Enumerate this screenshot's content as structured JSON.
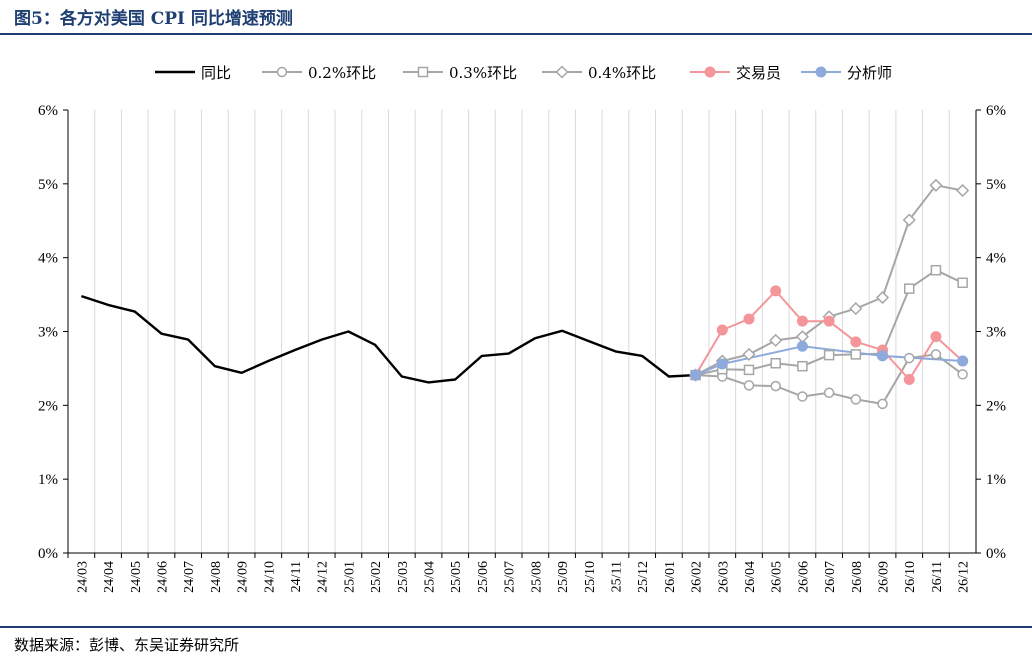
{
  "header": {
    "title": "图5：各方对美国 CPI 同比增速预测"
  },
  "footer": {
    "source": "数据来源：彭博、东吴证券研究所"
  },
  "chart_data": {
    "type": "line",
    "x": [
      "24/03",
      "24/04",
      "24/05",
      "24/06",
      "24/07",
      "24/08",
      "24/09",
      "24/10",
      "24/11",
      "24/12",
      "25/01",
      "25/02",
      "25/03",
      "25/04",
      "25/05",
      "25/06",
      "25/07",
      "25/08",
      "25/09",
      "25/10",
      "25/11",
      "25/12",
      "26/01",
      "26/02",
      "26/03",
      "26/04",
      "26/05",
      "26/06",
      "26/07",
      "26/08",
      "26/09",
      "26/10",
      "26/11",
      "26/12"
    ],
    "y_ticks": [
      "0%",
      "1%",
      "2%",
      "3%",
      "4%",
      "5%",
      "6%"
    ],
    "ylim": [
      0,
      6
    ],
    "legend_placement": "top",
    "grid": "vertical",
    "series": [
      {
        "name": "同比",
        "color": "#000000",
        "marker": "none",
        "values": [
          3.48,
          3.36,
          3.27,
          2.97,
          2.89,
          2.53,
          2.44,
          2.6,
          2.75,
          2.89,
          3.0,
          2.82,
          2.39,
          2.31,
          2.35,
          2.67,
          2.7,
          2.91,
          3.01,
          2.87,
          2.73,
          2.67,
          2.39,
          2.41,
          null,
          null,
          null,
          null,
          null,
          null,
          null,
          null,
          null,
          null
        ]
      },
      {
        "name": "0.2%环比",
        "color": "#a6a6a6",
        "marker": "circle",
        "values": [
          null,
          null,
          null,
          null,
          null,
          null,
          null,
          null,
          null,
          null,
          null,
          null,
          null,
          null,
          null,
          null,
          null,
          null,
          null,
          null,
          null,
          null,
          null,
          2.41,
          2.39,
          2.27,
          2.26,
          2.12,
          2.17,
          2.08,
          2.02,
          2.64,
          2.69,
          2.42
        ]
      },
      {
        "name": "0.3%环比",
        "color": "#a6a6a6",
        "marker": "square",
        "values": [
          null,
          null,
          null,
          null,
          null,
          null,
          null,
          null,
          null,
          null,
          null,
          null,
          null,
          null,
          null,
          null,
          null,
          null,
          null,
          null,
          null,
          null,
          null,
          2.41,
          2.49,
          2.48,
          2.57,
          2.53,
          2.68,
          2.69,
          2.7,
          3.58,
          3.83,
          3.66
        ]
      },
      {
        "name": "0.4%环比",
        "color": "#a6a6a6",
        "marker": "diamond",
        "values": [
          null,
          null,
          null,
          null,
          null,
          null,
          null,
          null,
          null,
          null,
          null,
          null,
          null,
          null,
          null,
          null,
          null,
          null,
          null,
          null,
          null,
          null,
          null,
          2.41,
          2.6,
          2.69,
          2.88,
          2.93,
          3.2,
          3.31,
          3.46,
          4.51,
          4.98,
          4.91
        ]
      },
      {
        "name": "交易员",
        "color": "#f4959a",
        "marker": "dot",
        "values": [
          null,
          null,
          null,
          null,
          null,
          null,
          null,
          null,
          null,
          null,
          null,
          null,
          null,
          null,
          null,
          null,
          null,
          null,
          null,
          null,
          null,
          null,
          null,
          2.41,
          3.02,
          3.17,
          3.55,
          3.14,
          3.14,
          2.86,
          2.75,
          2.35,
          2.93,
          2.6
        ]
      },
      {
        "name": "分析师",
        "color": "#8ea9db",
        "marker": "dot",
        "values": [
          null,
          null,
          null,
          null,
          null,
          null,
          null,
          null,
          null,
          null,
          null,
          null,
          null,
          null,
          null,
          null,
          null,
          null,
          null,
          null,
          null,
          null,
          null,
          2.41,
          2.56,
          null,
          null,
          2.8,
          null,
          null,
          2.67,
          null,
          null,
          2.6
        ]
      }
    ]
  }
}
